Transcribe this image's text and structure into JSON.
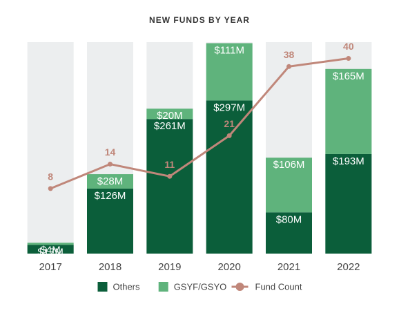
{
  "chart_data": {
    "type": "bar",
    "stacked": true,
    "title": "NEW FUNDS BY YEAR",
    "categories": [
      "2017",
      "2018",
      "2019",
      "2020",
      "2021",
      "2022"
    ],
    "ylim": [
      0,
      410
    ],
    "y2lim": [
      -8,
      44
    ],
    "series": [
      {
        "name": "Others",
        "color": "#0b5e3a",
        "values": [
          17,
          126,
          261,
          297,
          80,
          193
        ],
        "value_labels": [
          "$17M",
          "$126M",
          "$261M",
          "$297M",
          "$80M",
          "$193M"
        ]
      },
      {
        "name": "GSYF/GSYO",
        "color": "#5fb37c",
        "values": [
          4,
          28,
          20,
          111,
          106,
          165
        ],
        "value_labels": [
          "$4M",
          "$28M",
          "$20M",
          "$111M",
          "$106M",
          "$165M"
        ]
      },
      {
        "name": "Fund Count",
        "type": "line",
        "axis": "y2",
        "color": "#c0877a",
        "values": [
          8,
          14,
          11,
          21,
          38,
          40
        ]
      }
    ],
    "background_color": "#eceeef"
  }
}
